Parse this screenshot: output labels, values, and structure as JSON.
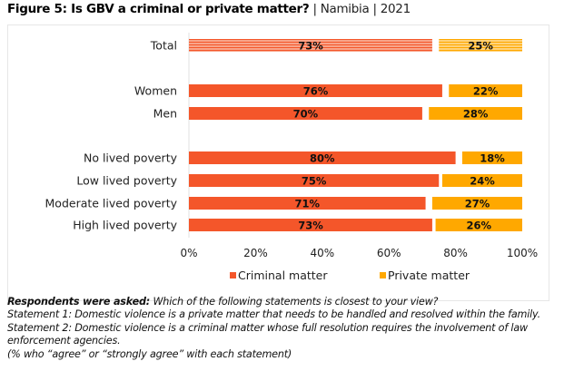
{
  "title": {
    "main": "Figure 5: Is GBV a criminal or private matter?",
    "country": "Namibia",
    "year": "2021",
    "separator": "|"
  },
  "chart_data": {
    "type": "bar",
    "orientation": "horizontal",
    "stacked": true,
    "categories": [
      "Total",
      "Women",
      "Men",
      "No lived poverty",
      "Low lived poverty",
      "Moderate lived poverty",
      "High lived poverty"
    ],
    "series": [
      {
        "name": "Criminal matter",
        "color": "#F4562A",
        "values": [
          73,
          76,
          70,
          80,
          75,
          71,
          73
        ]
      },
      {
        "name": "Private matter",
        "color": "#FFA800",
        "values": [
          25,
          22,
          28,
          18,
          24,
          27,
          26
        ]
      }
    ],
    "xlim": [
      0,
      100
    ],
    "xticks": [
      "0%",
      "20%",
      "40%",
      "60%",
      "80%",
      "100%"
    ],
    "legend_position": "bottom",
    "grid": false,
    "highlight_pattern": "Total row drawn striped"
  },
  "notes": {
    "asked_label": "Respondents were asked:",
    "asked_text": "Which of the following statements is closest to your view?",
    "statement1": "Statement 1: Domestic violence is a private matter that needs to be handled and resolved within the family.",
    "statement2": "Statement 2: Domestic violence is a criminal matter whose full resolution requires the involvement of law enforcement agencies.",
    "footnote": "(% who “agree” or “strongly agree” with each statement)"
  }
}
